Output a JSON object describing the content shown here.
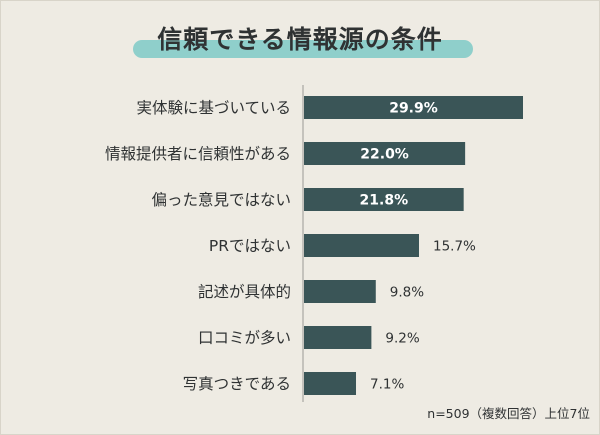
{
  "chart_data": {
    "type": "bar",
    "orientation": "horizontal",
    "title": "信頼できる情報源の条件",
    "categories": [
      "実体験に基づいている",
      "情報提供者に信頼性がある",
      "偏った意見ではない",
      "PRではない",
      "記述が具体的",
      "口コミが多い",
      "写真つきである"
    ],
    "values": [
      29.9,
      22.0,
      21.8,
      15.7,
      9.8,
      9.2,
      7.1
    ],
    "value_labels": [
      "29.9%",
      "22.0%",
      "21.8%",
      "15.7%",
      "9.8%",
      "9.2%",
      "7.1%"
    ],
    "xlim": [
      0,
      32
    ],
    "xlabel": "",
    "ylabel": "",
    "note": "n=509（複数回答）上位7位",
    "colors": {
      "bar": "#3a5557",
      "accent": "#8fcfcb",
      "background": "#eeebe3"
    }
  }
}
